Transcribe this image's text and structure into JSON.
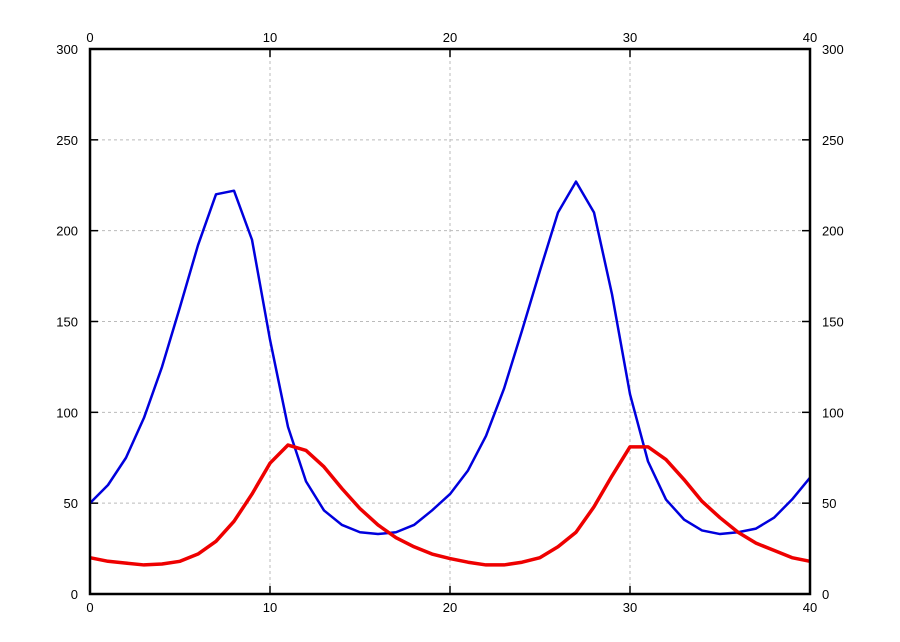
{
  "chart_data": {
    "type": "line",
    "x": [
      0,
      1,
      2,
      3,
      4,
      5,
      6,
      7,
      8,
      9,
      10,
      11,
      12,
      13,
      14,
      15,
      16,
      17,
      18,
      19,
      20,
      21,
      22,
      23,
      24,
      25,
      26,
      27,
      28,
      29,
      30,
      31,
      32,
      33,
      34,
      35,
      36,
      37,
      38,
      39,
      40
    ],
    "series": [
      {
        "color": "#0000dd",
        "values": [
          50,
          60,
          75,
          97,
          125,
          158,
          192,
          220,
          222,
          195,
          140,
          92,
          62,
          46,
          38,
          34,
          33,
          34,
          38,
          46,
          55,
          68,
          87,
          113,
          145,
          178,
          210,
          227,
          210,
          165,
          110,
          73,
          52,
          41,
          35,
          33,
          34,
          36,
          42,
          52,
          64
        ]
      },
      {
        "color": "#ee0000",
        "values": [
          20,
          18,
          17,
          16,
          16.5,
          18,
          22,
          29,
          40,
          55,
          72,
          82,
          79,
          70,
          58,
          47,
          38,
          31,
          26,
          22,
          19.5,
          17.5,
          16,
          16,
          17.5,
          20,
          26,
          34,
          48,
          65,
          81,
          81,
          74,
          63,
          51,
          42,
          34,
          28,
          24,
          20,
          18
        ]
      }
    ],
    "xlim": [
      0,
      40
    ],
    "xticks": [
      0,
      10,
      20,
      30,
      40
    ],
    "ylim": [
      0,
      300
    ],
    "yticks": [
      0,
      50,
      100,
      150,
      200,
      250,
      300
    ],
    "grid": true
  }
}
